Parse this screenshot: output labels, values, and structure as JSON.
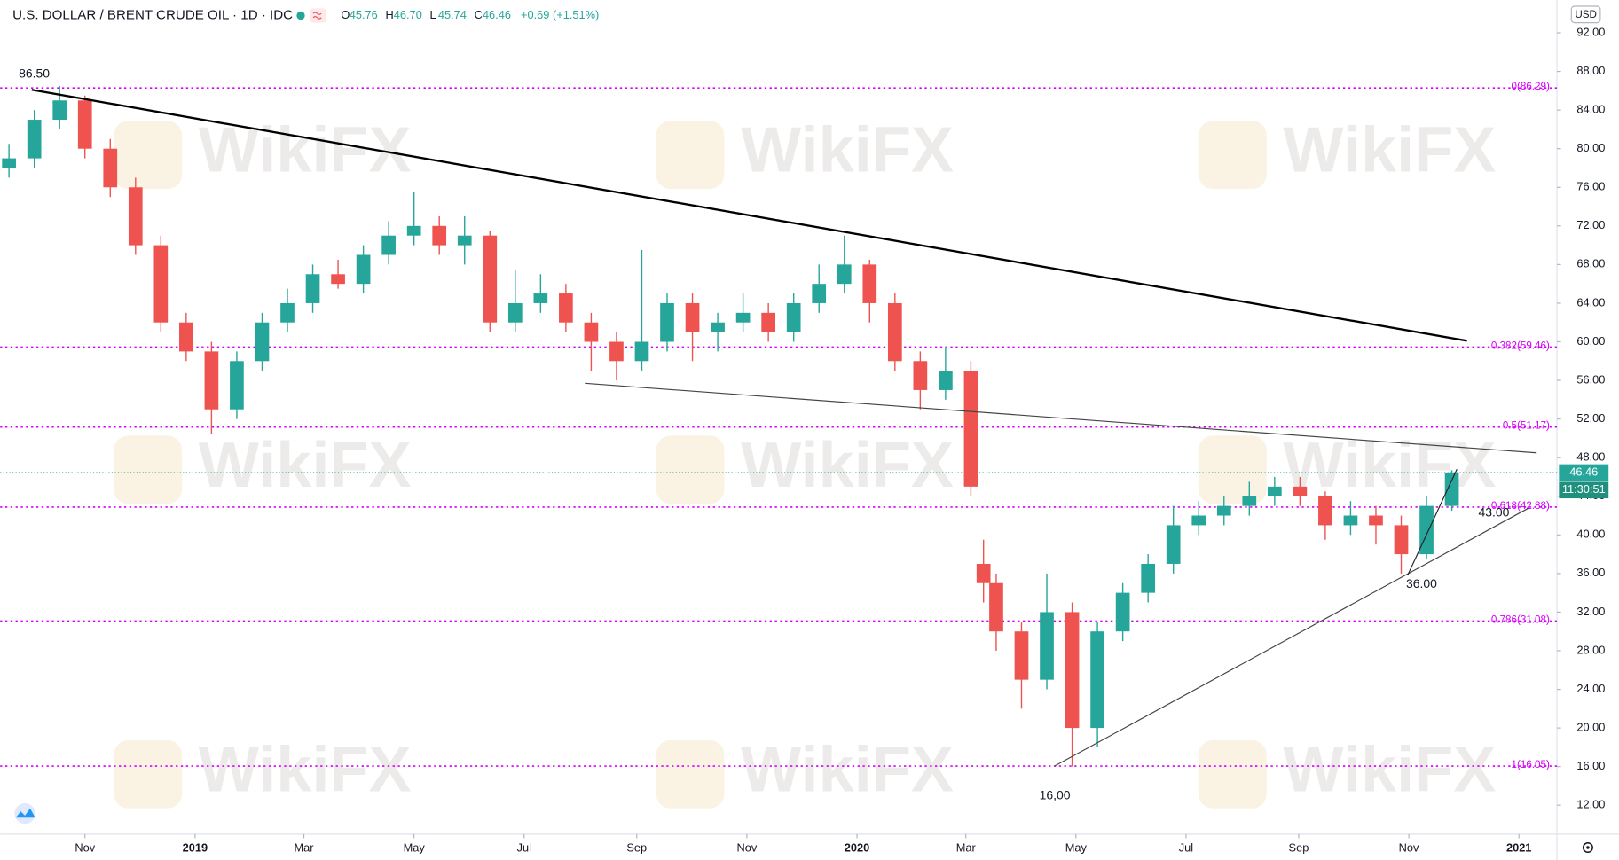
{
  "header": {
    "title": "U.S. DOLLAR / BRENT CRUDE OIL · 1D · IDC",
    "ohlc": [
      {
        "label": "O",
        "value": "45.76"
      },
      {
        "label": "H",
        "value": "46.70"
      },
      {
        "label": "L",
        "value": "45.74"
      },
      {
        "label": "C",
        "value": "46.46"
      }
    ],
    "change": "+0.69 (+1.51%)"
  },
  "currency": "USD",
  "watermark": "WikiFX",
  "countdown": "11:30:51",
  "chart_data": {
    "type": "candlestick",
    "x": [
      -6,
      -4,
      -2,
      0,
      2,
      4,
      6,
      8,
      10,
      12,
      14,
      16,
      18,
      20,
      22,
      24,
      26,
      28,
      30,
      32,
      34,
      36,
      38,
      40,
      42,
      44,
      46,
      48,
      50,
      52,
      54,
      56,
      58,
      60,
      62,
      64,
      66,
      68,
      70,
      71,
      72,
      74,
      76,
      78,
      80,
      82,
      84,
      86,
      88,
      90,
      92,
      94,
      96,
      98,
      100,
      102,
      104,
      106,
      108
    ],
    "open": [
      78,
      79,
      83,
      85,
      80,
      76,
      70,
      62,
      59,
      53,
      58,
      62,
      64,
      67,
      66,
      69,
      71,
      72,
      70,
      71,
      62,
      64,
      65,
      62,
      60,
      58,
      60,
      64,
      61,
      62,
      63,
      61,
      64,
      66,
      68,
      64,
      58,
      55,
      57,
      37,
      35,
      30,
      25,
      32,
      20,
      30,
      34,
      37,
      41,
      42,
      43,
      44,
      45,
      44,
      41,
      42,
      41,
      38,
      43
    ],
    "high": [
      80.5,
      84,
      86.5,
      85.5,
      81,
      77,
      71,
      63,
      60,
      59,
      63,
      65.5,
      68,
      68.5,
      70,
      72.5,
      75.5,
      73,
      73,
      71.5,
      67.5,
      67,
      66,
      63,
      61,
      69.5,
      65,
      65,
      63,
      65,
      64,
      65,
      68,
      71,
      68.5,
      65,
      59,
      59.5,
      58,
      39.5,
      36,
      31,
      36,
      33,
      31,
      35,
      38,
      43,
      43.5,
      44,
      45.5,
      46,
      46,
      44.5,
      43.5,
      43,
      42,
      44,
      46.7
    ],
    "low": [
      77,
      78,
      82,
      79,
      75,
      69,
      61,
      58,
      50.5,
      52,
      57,
      61,
      63,
      65.5,
      65,
      68,
      70,
      69,
      68,
      61,
      61,
      63,
      61,
      57,
      56,
      57,
      59,
      58,
      59,
      61,
      60,
      60,
      63,
      65,
      62,
      57,
      53,
      54,
      44,
      33,
      28,
      22,
      24,
      16,
      18,
      29,
      33,
      36,
      40,
      41,
      42,
      43,
      43,
      39.5,
      40,
      39,
      36,
      37.5,
      42.5
    ],
    "close": [
      79,
      83,
      85,
      80,
      76,
      70,
      62,
      59,
      53,
      58,
      62,
      64,
      67,
      66,
      69,
      71,
      72,
      70,
      71,
      62,
      64,
      65,
      62,
      60,
      58,
      60,
      64,
      61,
      62,
      63,
      61,
      64,
      66,
      68,
      64,
      58,
      55,
      57,
      45,
      35,
      30,
      25,
      32,
      20,
      30,
      34,
      37,
      41,
      42,
      43,
      44,
      45,
      44,
      41,
      42,
      41,
      38,
      43,
      46.46
    ],
    "up_color": "#26a69a",
    "down_color": "#ef5350",
    "xlim": [
      -6.7,
      116.3
    ],
    "xticks": [
      {
        "value": 0,
        "label": "Nov"
      },
      {
        "value": 8.7,
        "label": "2019"
      },
      {
        "value": 17.3,
        "label": "Mar"
      },
      {
        "value": 26,
        "label": "May"
      },
      {
        "value": 34.7,
        "label": "Jul"
      },
      {
        "value": 43.6,
        "label": "Sep"
      },
      {
        "value": 52.3,
        "label": "Nov"
      },
      {
        "value": 61,
        "label": "2020"
      },
      {
        "value": 69.6,
        "label": "Mar"
      },
      {
        "value": 78.3,
        "label": "May"
      },
      {
        "value": 87,
        "label": "Jul"
      },
      {
        "value": 95.9,
        "label": "Sep"
      },
      {
        "value": 104.6,
        "label": "Nov"
      },
      {
        "value": 113.3,
        "label": "2021"
      }
    ],
    "ylim": [
      9.0,
      95.4
    ],
    "yticks": [
      {
        "value": 12,
        "label": "12.00"
      },
      {
        "value": 16,
        "label": "16.00"
      },
      {
        "value": 20,
        "label": "20.00"
      },
      {
        "value": 24,
        "label": "24.00"
      },
      {
        "value": 28,
        "label": "28.00"
      },
      {
        "value": 32,
        "label": "32.00"
      },
      {
        "value": 36,
        "label": "36.00"
      },
      {
        "value": 40,
        "label": "40.00"
      },
      {
        "value": 44,
        "label": "44.00"
      },
      {
        "value": 48,
        "label": "48.00"
      },
      {
        "value": 52,
        "label": "52.00"
      },
      {
        "value": 56,
        "label": "56.00"
      },
      {
        "value": 60,
        "label": "60.00"
      },
      {
        "value": 64,
        "label": "64.00"
      },
      {
        "value": 68,
        "label": "68.00"
      },
      {
        "value": 72,
        "label": "72.00"
      },
      {
        "value": 76,
        "label": "76.00"
      },
      {
        "value": 80,
        "label": "80.00"
      },
      {
        "value": 84,
        "label": "84.00"
      },
      {
        "value": 88,
        "label": "88.00"
      },
      {
        "value": 92,
        "label": "92.00"
      }
    ],
    "grid": false,
    "last_price": 46.46,
    "last_price_color": "#26a69a",
    "fib_color": "#d500f9",
    "levels": [
      {
        "value": 86.29,
        "label": "0(86.29)"
      },
      {
        "value": 59.46,
        "label": "0.382(59.46)"
      },
      {
        "value": 51.17,
        "label": "0.5(51.17)"
      },
      {
        "value": 42.88,
        "label": "0.618(42.88)"
      },
      {
        "value": 31.08,
        "label": "0.786(31.08)"
      },
      {
        "value": 16.05,
        "label": "1(16.05)"
      }
    ],
    "trendlines": [
      {
        "x": [
          -4.2,
          109.2
        ],
        "y": [
          86.1,
          60.1
        ],
        "color": "#000000"
      },
      {
        "x": [
          39.5,
          114.7
        ],
        "y": [
          55.7,
          48.5
        ],
        "color": "#444444"
      },
      {
        "x": [
          76.6,
          114.1
        ],
        "y": [
          16.05,
          42.8
        ],
        "color": "#444444"
      },
      {
        "x": [
          104.5,
          108.4
        ],
        "y": [
          35.8,
          46.8
        ],
        "color": "#222222"
      }
    ],
    "annotations": [
      "86.50",
      "16,00",
      "36.00",
      "43.00"
    ]
  }
}
